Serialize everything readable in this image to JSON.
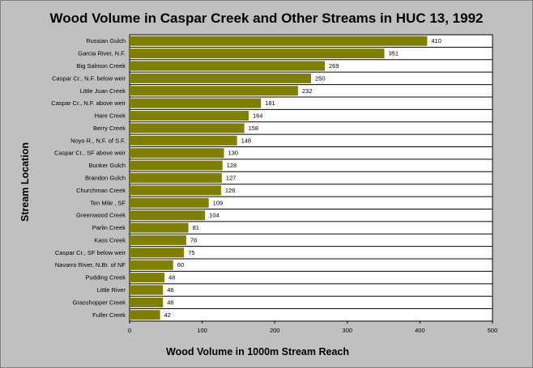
{
  "chart_data": {
    "type": "bar",
    "orientation": "horizontal",
    "title": "Wood Volume in Caspar Creek and Other Streams in HUC 13, 1992",
    "xlabel": "Wood Volume in 1000m Stream Reach",
    "ylabel": "Stream Location",
    "xlim": [
      0,
      500
    ],
    "xticks": [
      0,
      100,
      200,
      300,
      400,
      500
    ],
    "grid": "horizontal",
    "legend": "none",
    "colors": {
      "bar": "#7f7f00",
      "plot_bg": "#ffffff",
      "page_bg": "#c0c0c0"
    },
    "categories": [
      "Russian Gulch",
      "Garcia River, N.F.",
      "Big Salmon Creek",
      "Caspar Cr., N.F. below weir",
      "Little Juan Creek",
      "Caspar Cr., N.F. above weir",
      "Hare Creek",
      "Berry Creek",
      "Noyo R., N.F. of S.F.",
      "Caspar Cr., SF above weir",
      "Bunker Gulch",
      "Brandon Gulch",
      "Churchman Creek",
      "Ten Mile , SF",
      "Greenwood Creek",
      "Parlin Creek",
      "Kass Creek",
      "Caspar Cr., SF below weir",
      "Navarro River, N.Br. of NF",
      "Pudding Creek",
      "Little River",
      "Grasshopper Creek",
      "Fuller Creek"
    ],
    "values": [
      410,
      351,
      269,
      250,
      232,
      181,
      164,
      158,
      148,
      130,
      128,
      127,
      126,
      109,
      104,
      81,
      78,
      75,
      60,
      48,
      46,
      46,
      42
    ]
  }
}
